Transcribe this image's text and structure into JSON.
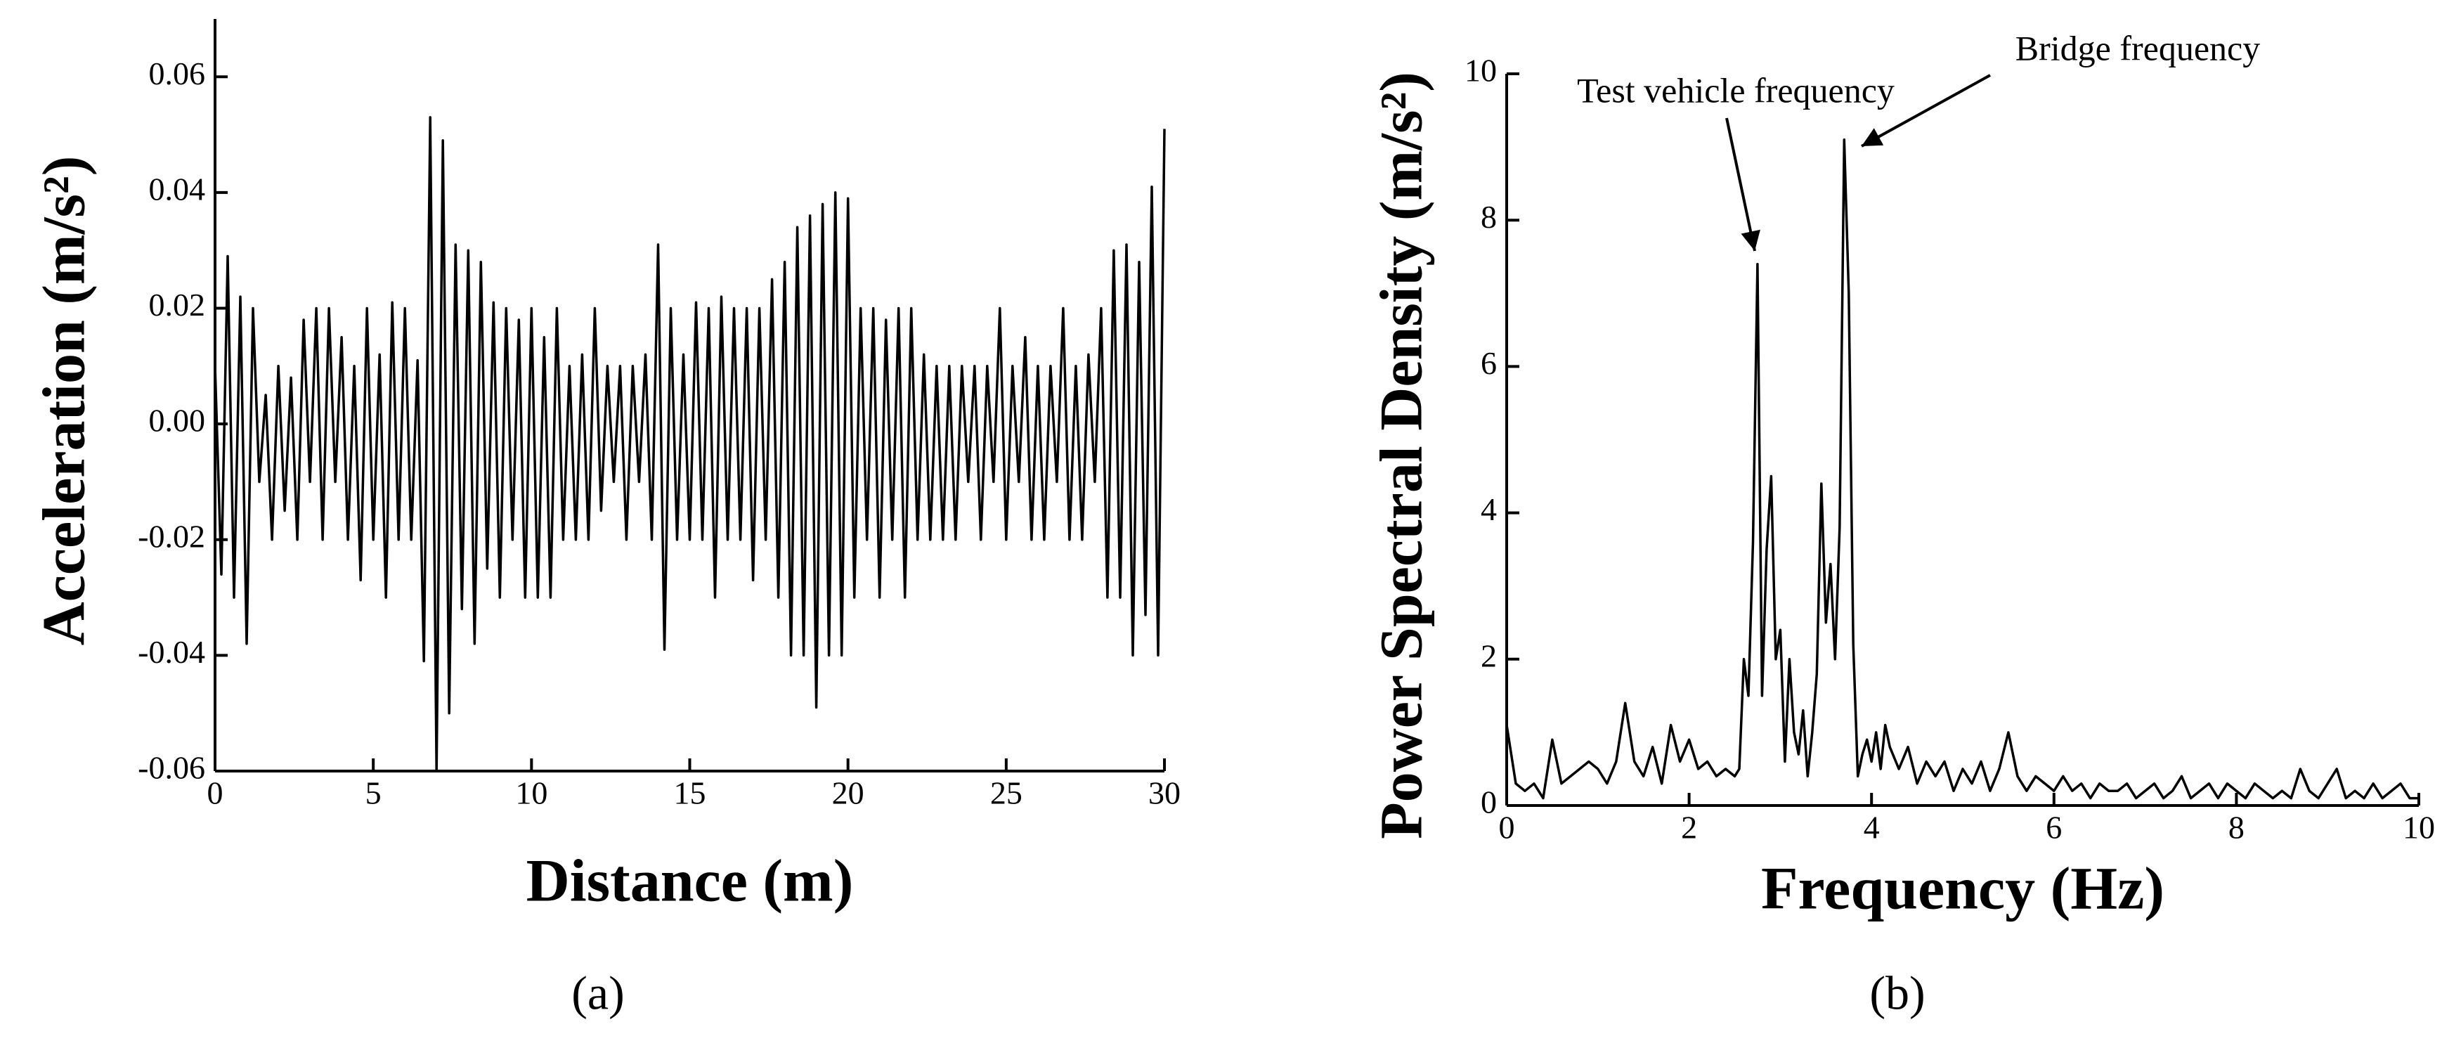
{
  "chart_data": [
    {
      "type": "line",
      "caption": "(a)",
      "xlabel": "Distance (m)",
      "ylabel": "Acceleration (m/s²)",
      "color": "#000000",
      "x": [
        0,
        0.2,
        0.4,
        0.6,
        0.8,
        1,
        1.2,
        1.4,
        1.6,
        1.8,
        2,
        2.2,
        2.4,
        2.6,
        2.8,
        3,
        3.2,
        3.4,
        3.6,
        3.8,
        4,
        4.2,
        4.4,
        4.6,
        4.8,
        5,
        5.2,
        5.4,
        5.6,
        5.8,
        6,
        6.2,
        6.4,
        6.6,
        6.8,
        7,
        7.2,
        7.4,
        7.6,
        7.8,
        8,
        8.2,
        8.4,
        8.6,
        8.8,
        9,
        9.2,
        9.4,
        9.6,
        9.8,
        10,
        10.2,
        10.4,
        10.6,
        10.8,
        11,
        11.2,
        11.4,
        11.6,
        11.8,
        12,
        12.2,
        12.4,
        12.6,
        12.8,
        13,
        13.2,
        13.4,
        13.6,
        13.8,
        14,
        14.2,
        14.4,
        14.6,
        14.8,
        15,
        15.2,
        15.4,
        15.6,
        15.8,
        16,
        16.2,
        16.4,
        16.6,
        16.8,
        17,
        17.2,
        17.4,
        17.6,
        17.8,
        18,
        18.2,
        18.4,
        18.6,
        18.8,
        19,
        19.2,
        19.4,
        19.6,
        19.8,
        20,
        20.2,
        20.4,
        20.6,
        20.8,
        21,
        21.2,
        21.4,
        21.6,
        21.8,
        22,
        22.2,
        22.4,
        22.6,
        22.8,
        23,
        23.2,
        23.4,
        23.6,
        23.8,
        24,
        24.2,
        24.4,
        24.6,
        24.8,
        25,
        25.2,
        25.4,
        25.6,
        25.8,
        26,
        26.2,
        26.4,
        26.6,
        26.8,
        27,
        27.2,
        27.4,
        27.6,
        27.8,
        28,
        28.2,
        28.4,
        28.6,
        28.8,
        29,
        29.2,
        29.4,
        29.6,
        29.8,
        30
      ],
      "values": [
        0.01,
        -0.026,
        0.029,
        -0.03,
        0.022,
        -0.038,
        0.02,
        -0.01,
        0.005,
        -0.02,
        0.01,
        -0.015,
        0.008,
        -0.02,
        0.018,
        -0.01,
        0.02,
        -0.02,
        0.02,
        -0.01,
        0.015,
        -0.02,
        0.01,
        -0.027,
        0.02,
        -0.02,
        0.012,
        -0.03,
        0.021,
        -0.02,
        0.02,
        -0.02,
        0.011,
        -0.041,
        0.053,
        -0.06,
        0.049,
        -0.05,
        0.031,
        -0.032,
        0.03,
        -0.038,
        0.028,
        -0.025,
        0.021,
        -0.03,
        0.02,
        -0.02,
        0.018,
        -0.03,
        0.02,
        -0.03,
        0.015,
        -0.03,
        0.02,
        -0.02,
        0.01,
        -0.02,
        0.012,
        -0.02,
        0.02,
        -0.015,
        0.01,
        -0.01,
        0.01,
        -0.02,
        0.01,
        -0.01,
        0.012,
        -0.02,
        0.031,
        -0.039,
        0.02,
        -0.02,
        0.012,
        -0.02,
        0.021,
        -0.02,
        0.02,
        -0.03,
        0.022,
        -0.02,
        0.02,
        -0.02,
        0.02,
        -0.027,
        0.02,
        -0.02,
        0.025,
        -0.03,
        0.028,
        -0.04,
        0.034,
        -0.04,
        0.036,
        -0.049,
        0.038,
        -0.04,
        0.04,
        -0.04,
        0.039,
        -0.03,
        0.02,
        -0.02,
        0.02,
        -0.03,
        0.018,
        -0.02,
        0.02,
        -0.03,
        0.02,
        -0.02,
        0.012,
        -0.02,
        0.01,
        -0.02,
        0.01,
        -0.02,
        0.01,
        -0.01,
        0.01,
        -0.02,
        0.01,
        -0.01,
        0.02,
        -0.02,
        0.01,
        -0.01,
        0.015,
        -0.02,
        0.01,
        -0.02,
        0.01,
        -0.01,
        0.02,
        -0.02,
        0.01,
        -0.02,
        0.012,
        -0.01,
        0.02,
        -0.03,
        0.03,
        -0.03,
        0.031,
        -0.04,
        0.028,
        -0.033,
        0.041,
        -0.04,
        0.051
      ],
      "xlim": [
        0,
        30
      ],
      "xticks": [
        0,
        5,
        10,
        15,
        20,
        25,
        30
      ],
      "ylim": [
        -0.06,
        0.07
      ],
      "yticks": [
        -0.06,
        -0.04,
        -0.02,
        {
          "value": 0,
          "label": "0.00"
        },
        0.02,
        0.04,
        0.06
      ]
    },
    {
      "type": "line",
      "caption": "(b)",
      "xlabel": "Frequency (Hz)",
      "ylabel": "Power Spectral Density (m/s²)",
      "color": "#000000",
      "annotations": [
        "Test vehicle frequency",
        "Bridge frequency"
      ],
      "x": [
        0,
        0.1,
        0.2,
        0.3,
        0.4,
        0.5,
        0.6,
        0.7,
        0.8,
        0.9,
        1,
        1.1,
        1.2,
        1.3,
        1.4,
        1.5,
        1.6,
        1.7,
        1.8,
        1.9,
        2,
        2.1,
        2.2,
        2.3,
        2.4,
        2.5,
        2.55,
        2.6,
        2.65,
        2.7,
        2.75,
        2.8,
        2.85,
        2.9,
        2.95,
        3,
        3.05,
        3.1,
        3.15,
        3.2,
        3.25,
        3.3,
        3.35,
        3.4,
        3.45,
        3.5,
        3.55,
        3.6,
        3.65,
        3.7,
        3.75,
        3.8,
        3.85,
        3.9,
        3.95,
        4,
        4.05,
        4.1,
        4.15,
        4.2,
        4.3,
        4.4,
        4.5,
        4.6,
        4.7,
        4.8,
        4.9,
        5,
        5.1,
        5.2,
        5.3,
        5.4,
        5.5,
        5.6,
        5.7,
        5.8,
        5.9,
        6,
        6.1,
        6.2,
        6.3,
        6.4,
        6.5,
        6.6,
        6.7,
        6.8,
        6.9,
        7,
        7.1,
        7.2,
        7.3,
        7.4,
        7.5,
        7.6,
        7.7,
        7.8,
        7.9,
        8,
        8.1,
        8.2,
        8.3,
        8.4,
        8.5,
        8.6,
        8.7,
        8.8,
        8.9,
        9,
        9.1,
        9.2,
        9.3,
        9.4,
        9.5,
        9.6,
        9.7,
        9.8,
        9.9,
        10
      ],
      "values": [
        1.1,
        0.3,
        0.2,
        0.3,
        0.1,
        0.9,
        0.3,
        0.4,
        0.5,
        0.6,
        0.5,
        0.3,
        0.6,
        1.4,
        0.6,
        0.4,
        0.8,
        0.3,
        1.1,
        0.6,
        0.9,
        0.5,
        0.6,
        0.4,
        0.5,
        0.4,
        0.5,
        2.0,
        1.5,
        3.6,
        7.4,
        1.5,
        3.5,
        4.5,
        2.0,
        2.4,
        0.6,
        2.0,
        1.0,
        0.7,
        1.3,
        0.4,
        1.0,
        1.8,
        4.4,
        2.5,
        3.3,
        2.0,
        3.8,
        9.1,
        7.0,
        2.2,
        0.4,
        0.7,
        0.9,
        0.6,
        1.0,
        0.5,
        1.1,
        0.8,
        0.5,
        0.8,
        0.3,
        0.6,
        0.4,
        0.6,
        0.2,
        0.5,
        0.3,
        0.6,
        0.2,
        0.5,
        1.0,
        0.4,
        0.2,
        0.4,
        0.3,
        0.2,
        0.4,
        0.2,
        0.3,
        0.1,
        0.3,
        0.2,
        0.2,
        0.3,
        0.1,
        0.2,
        0.3,
        0.1,
        0.2,
        0.4,
        0.1,
        0.2,
        0.3,
        0.1,
        0.3,
        0.2,
        0.1,
        0.3,
        0.2,
        0.1,
        0.2,
        0.1,
        0.5,
        0.2,
        0.1,
        0.3,
        0.5,
        0.1,
        0.2,
        0.1,
        0.3,
        0.1,
        0.2,
        0.3,
        0.1,
        0.1
      ],
      "xlim": [
        0,
        10
      ],
      "xticks": [
        0,
        2,
        4,
        6,
        8,
        10
      ],
      "ylim": [
        0,
        10
      ],
      "yticks": [
        0,
        2,
        4,
        6,
        8,
        10
      ]
    }
  ]
}
